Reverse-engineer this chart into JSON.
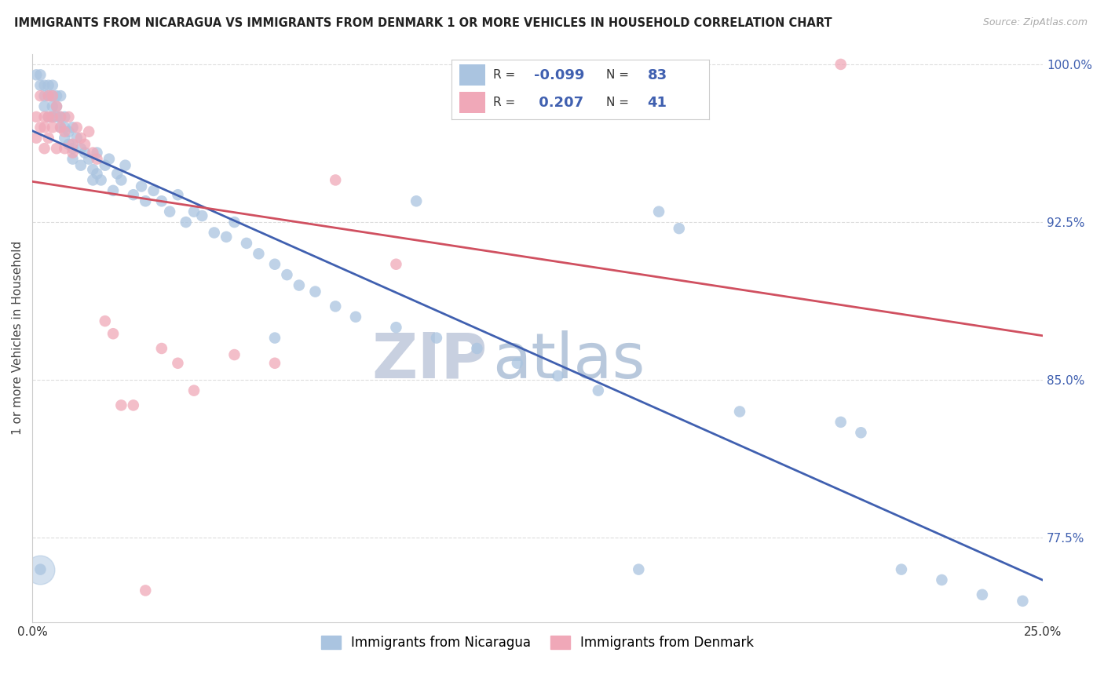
{
  "title": "IMMIGRANTS FROM NICARAGUA VS IMMIGRANTS FROM DENMARK 1 OR MORE VEHICLES IN HOUSEHOLD CORRELATION CHART",
  "source": "Source: ZipAtlas.com",
  "ylabel": "1 or more Vehicles in Household",
  "xlim": [
    0.0,
    0.25
  ],
  "ylim": [
    0.735,
    1.005
  ],
  "yticks": [
    0.775,
    0.85,
    0.925,
    1.0
  ],
  "ytick_labels": [
    "77.5%",
    "85.0%",
    "92.5%",
    "100.0%"
  ],
  "xticks": [
    0.0,
    0.03125,
    0.0625,
    0.09375,
    0.125,
    0.15625,
    0.1875,
    0.21875,
    0.25
  ],
  "xtick_labels": [
    "0.0%",
    "",
    "",
    "",
    "",
    "",
    "",
    "",
    "25.0%"
  ],
  "blue_color": "#aac4e0",
  "pink_color": "#f0a8b8",
  "blue_line_color": "#4060b0",
  "pink_line_color": "#d05060",
  "R_blue": -0.099,
  "N_blue": 83,
  "R_pink": 0.207,
  "N_pink": 41,
  "legend_blue": "Immigrants from Nicaragua",
  "legend_pink": "Immigrants from Denmark",
  "blue_x": [
    0.001,
    0.002,
    0.002,
    0.003,
    0.003,
    0.003,
    0.004,
    0.004,
    0.004,
    0.005,
    0.005,
    0.005,
    0.005,
    0.006,
    0.006,
    0.006,
    0.007,
    0.007,
    0.007,
    0.008,
    0.008,
    0.008,
    0.009,
    0.009,
    0.01,
    0.01,
    0.01,
    0.011,
    0.012,
    0.012,
    0.013,
    0.014,
    0.015,
    0.015,
    0.016,
    0.016,
    0.017,
    0.018,
    0.019,
    0.02,
    0.021,
    0.022,
    0.023,
    0.025,
    0.027,
    0.028,
    0.03,
    0.032,
    0.034,
    0.036,
    0.038,
    0.04,
    0.042,
    0.045,
    0.048,
    0.05,
    0.053,
    0.056,
    0.06,
    0.063,
    0.066,
    0.07,
    0.075,
    0.08,
    0.09,
    0.1,
    0.11,
    0.12,
    0.13,
    0.14,
    0.002,
    0.155,
    0.16,
    0.175,
    0.2,
    0.205,
    0.215,
    0.225,
    0.235,
    0.245,
    0.06,
    0.095,
    0.15
  ],
  "blue_y": [
    0.995,
    0.99,
    0.995,
    0.985,
    0.99,
    0.98,
    0.985,
    0.99,
    0.975,
    0.985,
    0.98,
    0.99,
    0.975,
    0.98,
    0.985,
    0.975,
    0.97,
    0.985,
    0.975,
    0.97,
    0.965,
    0.975,
    0.968,
    0.962,
    0.97,
    0.96,
    0.955,
    0.965,
    0.96,
    0.952,
    0.958,
    0.955,
    0.95,
    0.945,
    0.958,
    0.948,
    0.945,
    0.952,
    0.955,
    0.94,
    0.948,
    0.945,
    0.952,
    0.938,
    0.942,
    0.935,
    0.94,
    0.935,
    0.93,
    0.938,
    0.925,
    0.93,
    0.928,
    0.92,
    0.918,
    0.925,
    0.915,
    0.91,
    0.905,
    0.9,
    0.895,
    0.892,
    0.885,
    0.88,
    0.875,
    0.87,
    0.865,
    0.858,
    0.852,
    0.845,
    0.76,
    0.93,
    0.922,
    0.835,
    0.83,
    0.825,
    0.76,
    0.755,
    0.748,
    0.745,
    0.87,
    0.935,
    0.76
  ],
  "pink_x": [
    0.001,
    0.001,
    0.002,
    0.002,
    0.003,
    0.003,
    0.003,
    0.004,
    0.004,
    0.004,
    0.005,
    0.005,
    0.005,
    0.006,
    0.006,
    0.007,
    0.007,
    0.008,
    0.008,
    0.009,
    0.01,
    0.01,
    0.011,
    0.012,
    0.013,
    0.014,
    0.015,
    0.016,
    0.018,
    0.02,
    0.022,
    0.025,
    0.028,
    0.032,
    0.036,
    0.04,
    0.05,
    0.06,
    0.075,
    0.09,
    0.2
  ],
  "pink_y": [
    0.965,
    0.975,
    0.97,
    0.985,
    0.975,
    0.96,
    0.97,
    0.965,
    0.975,
    0.985,
    0.97,
    0.985,
    0.975,
    0.98,
    0.96,
    0.975,
    0.97,
    0.96,
    0.968,
    0.975,
    0.962,
    0.958,
    0.97,
    0.965,
    0.962,
    0.968,
    0.958,
    0.955,
    0.878,
    0.872,
    0.838,
    0.838,
    0.75,
    0.865,
    0.858,
    0.845,
    0.862,
    0.858,
    0.945,
    0.905,
    1.0
  ],
  "watermark_left": "ZIP",
  "watermark_right": "atlas",
  "watermark_color_left": "#c8d0e0",
  "watermark_color_right": "#b8c8dc",
  "background_color": "#ffffff",
  "grid_color": "#dddddd",
  "dot_size": 110
}
